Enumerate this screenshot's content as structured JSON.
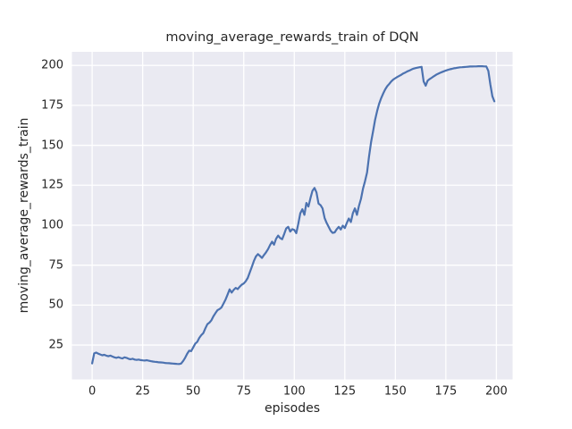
{
  "colors": {
    "figure_background": "#ffffff",
    "axes_background": "#eaeaf2",
    "grid": "#ffffff",
    "line": "#4c72b0",
    "text": "#262626"
  },
  "chart_data": {
    "type": "line",
    "title": "moving_average_rewards_train of DQN",
    "xlabel": "episodes",
    "ylabel": "moving_average_rewards_train",
    "grid": true,
    "legend": "none",
    "xticks": [
      0,
      25,
      50,
      75,
      100,
      125,
      150,
      175,
      200
    ],
    "yticks": [
      25,
      50,
      75,
      100,
      125,
      150,
      175,
      200
    ],
    "xlim": [
      -10,
      208
    ],
    "ylim": [
      3.5,
      208.5
    ],
    "x_start": 0,
    "x_step": 1,
    "series": [
      {
        "name": "moving_average_rewards_train",
        "color": "#4c72b0",
        "values": [
          13.5,
          19.8,
          20.3,
          19.6,
          19.1,
          18.6,
          18.9,
          18.4,
          18.0,
          18.4,
          17.8,
          17.3,
          17.0,
          17.4,
          16.9,
          16.6,
          17.3,
          17.0,
          16.4,
          16.1,
          16.4,
          15.9,
          15.7,
          15.9,
          15.6,
          15.4,
          15.3,
          15.5,
          15.2,
          14.9,
          14.7,
          14.5,
          14.4,
          14.2,
          14.1,
          14.0,
          13.8,
          13.7,
          13.6,
          13.5,
          13.4,
          13.3,
          13.2,
          13.1,
          13.4,
          15.0,
          17.0,
          19.5,
          21.5,
          21.2,
          23.5,
          25.8,
          27.0,
          29.5,
          31.2,
          32.5,
          35.5,
          38.0,
          39.0,
          40.5,
          43.0,
          45.0,
          46.8,
          47.5,
          48.5,
          51.0,
          53.5,
          56.5,
          59.8,
          57.8,
          59.5,
          60.8,
          60.0,
          61.5,
          62.8,
          63.5,
          65.0,
          67.0,
          70.5,
          74.0,
          77.5,
          80.4,
          81.9,
          80.8,
          79.5,
          81.3,
          83.0,
          85.0,
          87.5,
          89.7,
          87.8,
          91.5,
          93.5,
          92.0,
          91.2,
          94.5,
          98.0,
          99.0,
          96.0,
          97.5,
          97.0,
          95.0,
          101.0,
          107.5,
          110.0,
          106.5,
          113.9,
          111.7,
          117.0,
          121.5,
          123.3,
          120.5,
          113.5,
          112.5,
          110.5,
          104.5,
          101.5,
          99.0,
          96.5,
          95.2,
          95.5,
          97.5,
          99.0,
          97.3,
          99.7,
          98.2,
          101.5,
          104.2,
          102.0,
          107.5,
          110.5,
          106.5,
          112.0,
          116.5,
          123.0,
          127.5,
          133.0,
          143.0,
          152.0,
          159.0,
          166.0,
          171.5,
          176.0,
          179.5,
          182.5,
          185.0,
          187.0,
          188.5,
          190.0,
          191.2,
          192.0,
          192.8,
          193.5,
          194.2,
          195.0,
          195.6,
          196.3,
          196.8,
          197.4,
          198.0,
          198.3,
          198.6,
          198.9,
          199.1,
          190.0,
          187.3,
          190.5,
          191.5,
          192.3,
          193.2,
          194.0,
          194.7,
          195.3,
          195.8,
          196.3,
          196.8,
          197.2,
          197.6,
          197.9,
          198.2,
          198.4,
          198.6,
          198.8,
          198.9,
          199.0,
          199.1,
          199.2,
          199.3,
          199.3,
          199.4,
          199.4,
          199.5,
          199.5,
          199.5,
          199.4,
          199.4,
          196.6,
          188.2,
          180.7,
          177.5
        ]
      }
    ]
  }
}
